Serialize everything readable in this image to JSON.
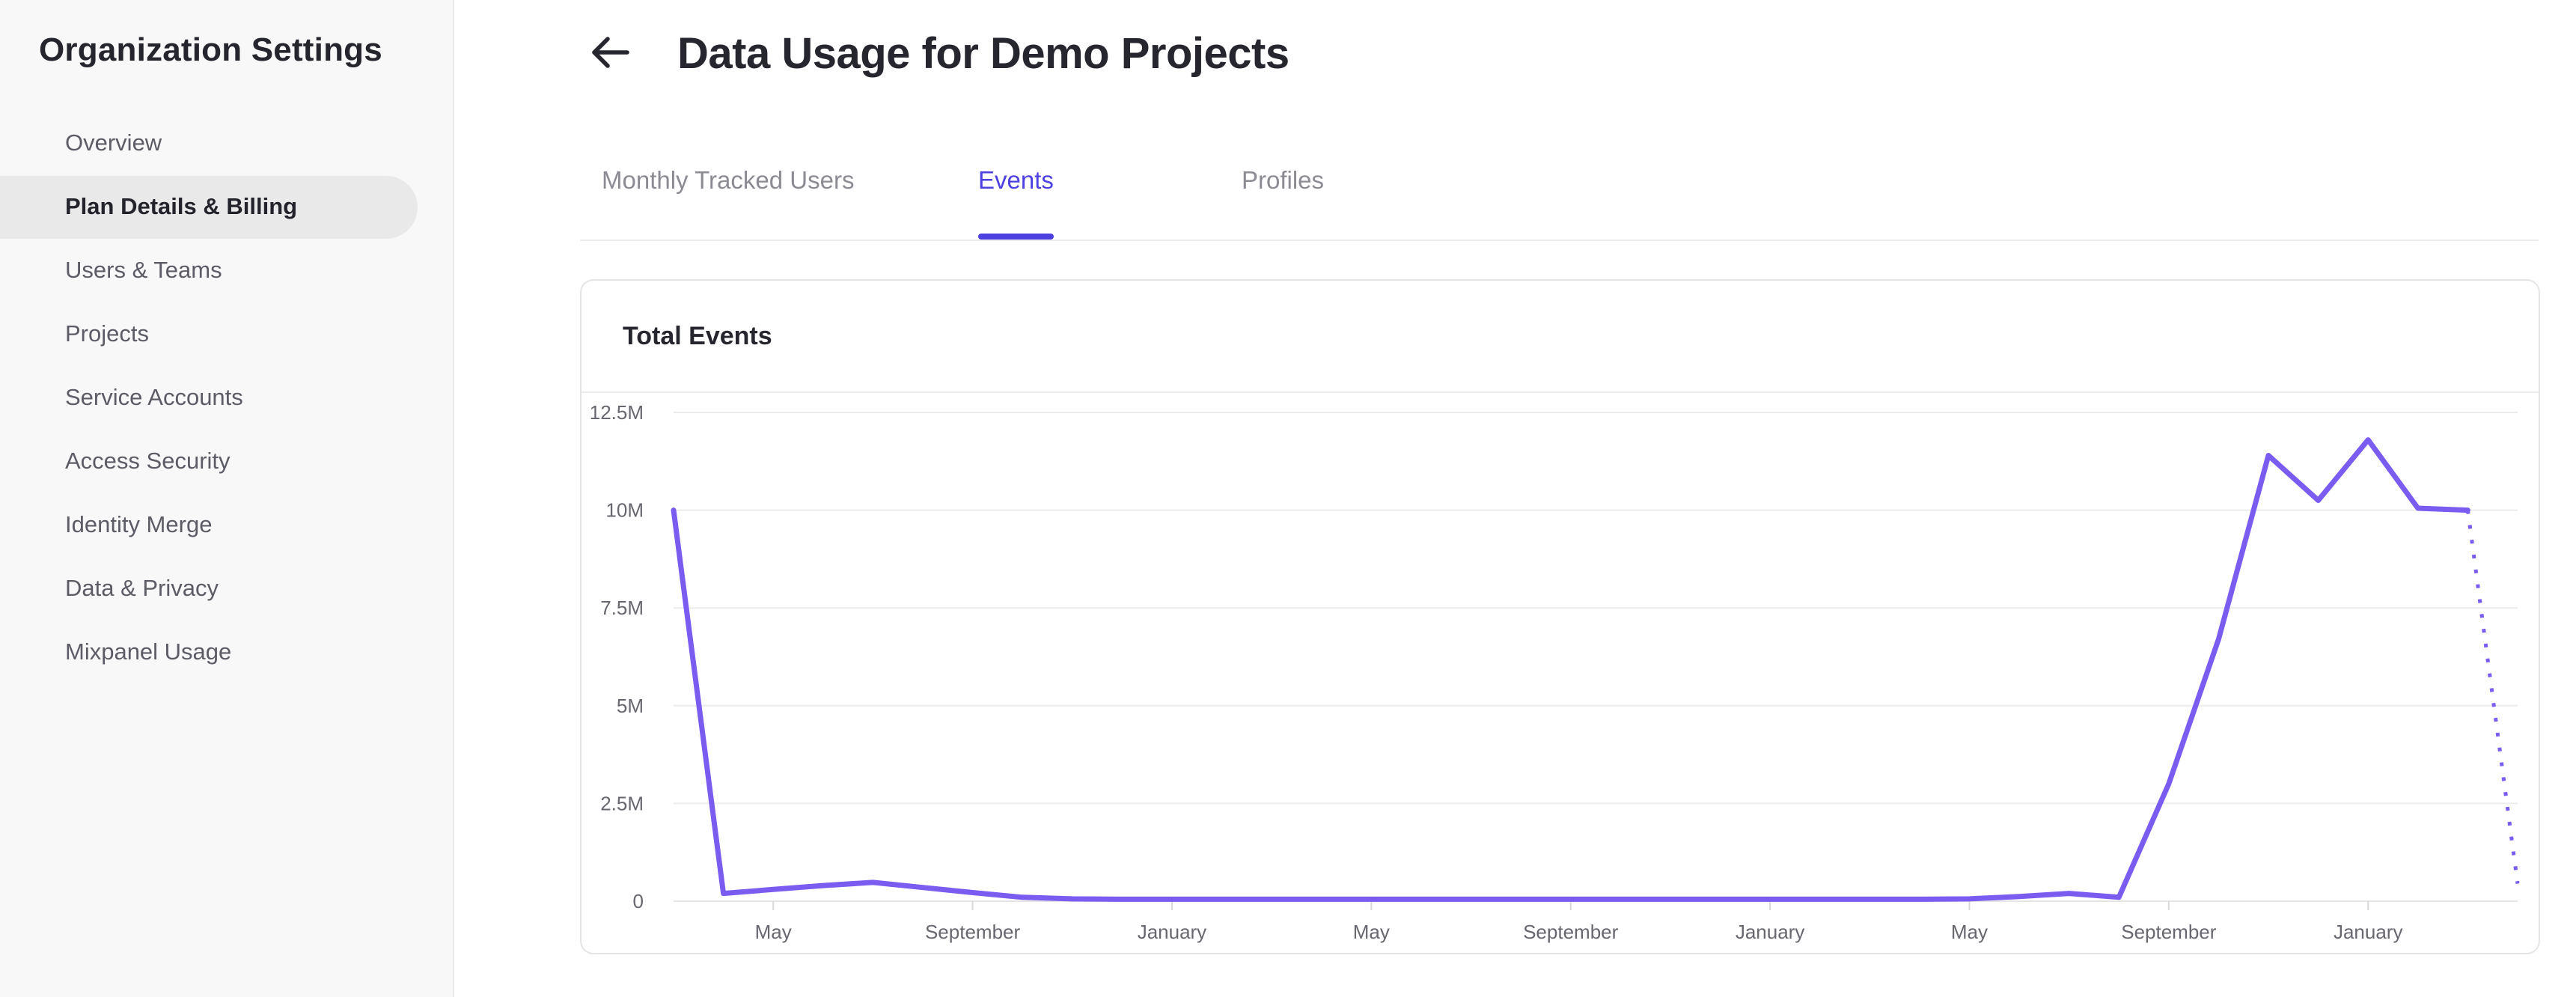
{
  "sidebar": {
    "title": "Organization Settings",
    "items": [
      {
        "label": "Overview",
        "selected": false
      },
      {
        "label": "Plan Details & Billing",
        "selected": true
      },
      {
        "label": "Users & Teams",
        "selected": false
      },
      {
        "label": "Projects",
        "selected": false
      },
      {
        "label": "Service Accounts",
        "selected": false
      },
      {
        "label": "Access Security",
        "selected": false
      },
      {
        "label": "Identity Merge",
        "selected": false
      },
      {
        "label": "Data & Privacy",
        "selected": false
      },
      {
        "label": "Mixpanel Usage",
        "selected": false
      }
    ]
  },
  "header": {
    "title": "Data Usage for Demo Projects"
  },
  "tabs": [
    {
      "label": "Monthly Tracked Users",
      "active": false
    },
    {
      "label": "Events",
      "active": true
    },
    {
      "label": "Profiles",
      "active": false
    }
  ],
  "card": {
    "title": "Total Events"
  },
  "colors": {
    "accent_purple": "#4c40e0",
    "chart_line_purple": "#7b5cf0",
    "sidebar_bg": "#f8f8f8",
    "selected_pill_bg": "#e9e9e9",
    "text_dark": "#26262e",
    "text_gray": "#5c5c66",
    "gridline": "#ececec"
  },
  "chart_data": {
    "type": "line",
    "title": "Total Events",
    "x_unit": "month",
    "x_tick_labels": [
      "May",
      "September",
      "January",
      "May",
      "September",
      "January",
      "May",
      "September",
      "January"
    ],
    "x_tick_indices": [
      2,
      6,
      10,
      14,
      18,
      22,
      26,
      30,
      34
    ],
    "y_ticks": [
      {
        "label": "0",
        "value": 0
      },
      {
        "label": "2.5M",
        "value": 2.5
      },
      {
        "label": "5M",
        "value": 5
      },
      {
        "label": "7.5M",
        "value": 7.5
      },
      {
        "label": "10M",
        "value": 10
      },
      {
        "label": "12.5M",
        "value": 12.5
      }
    ],
    "ylim_millions": [
      0,
      12.5
    ],
    "grid": true,
    "legend": false,
    "line_color": "#7b5cf0",
    "series": [
      {
        "name": "Total Events",
        "values_millions": [
          10,
          0.2,
          0.3,
          0.4,
          0.48,
          0.35,
          0.22,
          0.1,
          0.06,
          0.05,
          0.05,
          0.05,
          0.05,
          0.05,
          0.05,
          0.05,
          0.05,
          0.05,
          0.05,
          0.05,
          0.05,
          0.05,
          0.05,
          0.05,
          0.05,
          0.05,
          0.06,
          0.12,
          0.2,
          0.1,
          3.0,
          6.7,
          11.4,
          10.25,
          11.8,
          10.05,
          10.0,
          0.45
        ],
        "last_point_projected": true
      }
    ]
  }
}
